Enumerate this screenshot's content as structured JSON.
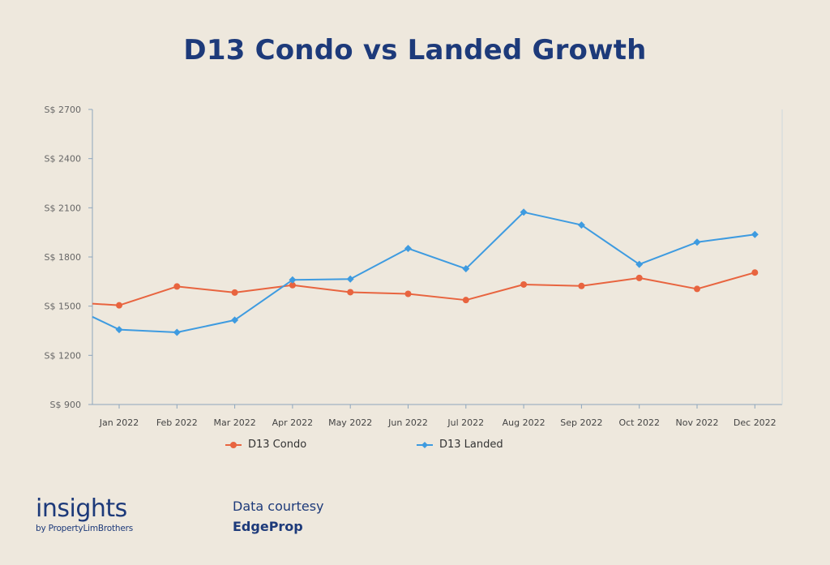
{
  "chart_data": {
    "type": "line",
    "title": "D13 Condo vs Landed Growth",
    "xlabel": "",
    "ylabel": "",
    "categories": [
      "Jan 2022",
      "Feb 2022",
      "Mar 2022",
      "Apr 2022",
      "May 2022",
      "Jun 2022",
      "Jul 2022",
      "Aug 2022",
      "Sep 2022",
      "Oct 2022",
      "Nov 2022",
      "Dec 2022"
    ],
    "ylim": [
      900,
      2700
    ],
    "yticks": [
      900,
      1200,
      1500,
      1800,
      2100,
      2400,
      2700
    ],
    "ytick_labels": [
      "S$ 900",
      "S$ 1200",
      "S$ 1500",
      "S$ 1800",
      "S$ 2100",
      "S$ 2400",
      "S$ 2700"
    ],
    "series": [
      {
        "name": "D13 Condo",
        "color": "#e8643f",
        "marker": "circle",
        "values": [
          1505,
          1620,
          1583,
          1628,
          1585,
          1575,
          1537,
          1632,
          1623,
          1672,
          1605,
          1705
        ],
        "edge_start": 1515
      },
      {
        "name": "D13 Landed",
        "color": "#3e9be0",
        "marker": "diamond",
        "values": [
          1357,
          1340,
          1415,
          1660,
          1665,
          1852,
          1728,
          2073,
          1995,
          1755,
          1890,
          1937
        ],
        "edge_start": 1435
      }
    ],
    "legend_position": "bottom",
    "grid": false
  },
  "footer": {
    "brand_name": "insights",
    "brand_sub": "by PropertyLimBrothers",
    "courtesy_label": "Data courtesy",
    "courtesy_source": "EdgeProp"
  }
}
